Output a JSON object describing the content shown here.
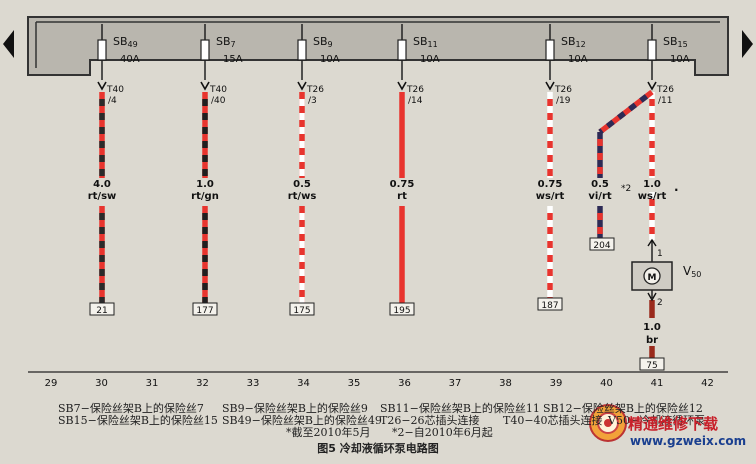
{
  "diagram": {
    "title": "图5 冷却液循环泵电路图",
    "fuses": [
      {
        "id": "SB49",
        "prefix": "SB",
        "num": "49",
        "rating": "40A"
      },
      {
        "id": "SB7",
        "prefix": "SB",
        "num": "7",
        "rating": "15A"
      },
      {
        "id": "SB9",
        "prefix": "SB",
        "num": "9",
        "rating": "10A"
      },
      {
        "id": "SB11",
        "prefix": "SB",
        "num": "11",
        "rating": "10A"
      },
      {
        "id": "SB12",
        "prefix": "SB",
        "num": "12",
        "rating": "10A"
      },
      {
        "id": "SB15",
        "prefix": "SB",
        "num": "15",
        "rating": "10A"
      }
    ],
    "connectors": [
      {
        "name": "T40",
        "pin": "/4"
      },
      {
        "name": "T40",
        "pin": "/40"
      },
      {
        "name": "T26",
        "pin": "/3"
      },
      {
        "name": "T26",
        "pin": "/14"
      },
      {
        "name": "T26",
        "pin": "/19"
      },
      {
        "name": "T26",
        "pin": "/11"
      }
    ],
    "wires": [
      {
        "size": "4.0",
        "color": "rt/sw",
        "colors": [
          "#e8342e",
          "#2a2a2a"
        ]
      },
      {
        "size": "1.0",
        "color": "rt/gn",
        "colors": [
          "#e8342e",
          "#1f1f1f"
        ]
      },
      {
        "size": "0.5",
        "color": "rt/ws",
        "colors": [
          "#e8342e",
          "#ffffff"
        ]
      },
      {
        "size": "0.75",
        "color": "rt",
        "colors": [
          "#e8342e",
          "#e8342e"
        ]
      },
      {
        "size": "0.75",
        "color": "ws/rt",
        "colors": [
          "#ffffff",
          "#e8342e"
        ]
      },
      {
        "size": "0.5",
        "color": "vi/rt",
        "colors": [
          "#2d2a55",
          "#e8342e"
        ]
      },
      {
        "size": "1.0",
        "color": "ws/rt",
        "colors": [
          "#ffffff",
          "#e8342e"
        ]
      },
      {
        "size": "1.0",
        "color": "br",
        "colors": [
          "#9a2a1c",
          "#9a2a1c"
        ]
      }
    ],
    "note_mark_2": "*2",
    "note_mark_dot": ".",
    "refs": [
      "21",
      "177",
      "175",
      "195",
      "187",
      "204",
      "75"
    ],
    "component": {
      "label_main": "V",
      "label_sub": "50",
      "symbol": "M",
      "pin_top": "1",
      "pin_bottom": "2"
    },
    "grid": [
      "29",
      "30",
      "31",
      "32",
      "33",
      "34",
      "35",
      "36",
      "37",
      "38",
      "39",
      "40",
      "41",
      "42"
    ],
    "captions": {
      "c1a": "SB7−保险丝架B上的保险丝7",
      "c1b": "SB15−保险丝架B上的保险丝15",
      "c2a": "SB9−保险丝架B上的保险丝9",
      "c2b": "SB49−保险丝架B上的保险丝49",
      "c2c": "*截至2010年5月",
      "c3a": "SB11−保险丝架B上的保险丝11",
      "c3b": "T26−26芯插头连接",
      "c3c": "*2−自2010年6月起",
      "c4a": "SB12−保险丝架B上的保险丝12",
      "c4b": "T40−40芯插头连接",
      "c4c": "V50−冷却液循环泵"
    },
    "watermark": {
      "cn": "精通维修下载",
      "url": "www.gzweix.com"
    }
  }
}
